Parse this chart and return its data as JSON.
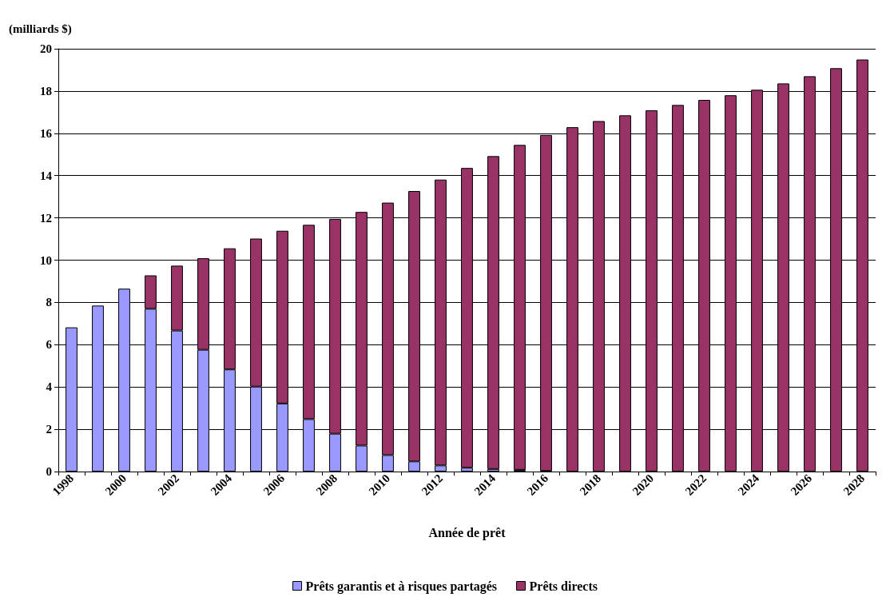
{
  "chart_data": {
    "type": "bar",
    "stacked": true,
    "ylabel": "(milliards $)",
    "xlabel": "Année de prêt",
    "categories": [
      "1998",
      null,
      "2000",
      null,
      "2002",
      null,
      "2004",
      null,
      "2006",
      null,
      "2008",
      null,
      "2010",
      null,
      "2012",
      null,
      "2014",
      null,
      "2016",
      null,
      "2018",
      null,
      "2020",
      null,
      "2022",
      null,
      "2024",
      null,
      "2026",
      null,
      "2028"
    ],
    "series": [
      {
        "name": "Prêts garantis et à risques partagés",
        "color": "#9999ff",
        "values": [
          6.82,
          7.85,
          8.65,
          7.7,
          6.67,
          5.76,
          4.83,
          4.02,
          3.22,
          2.48,
          1.79,
          1.23,
          0.78,
          0.48,
          0.29,
          0.18,
          0.12,
          0.08,
          0.03,
          null,
          null,
          null,
          null,
          null,
          null,
          null,
          null,
          null,
          null,
          null,
          null
        ]
      },
      {
        "name": "Prêts directs",
        "color": "#993366",
        "values": [
          null,
          null,
          null,
          1.58,
          3.07,
          4.33,
          5.73,
          7.0,
          8.17,
          9.19,
          10.16,
          11.05,
          11.94,
          12.79,
          13.52,
          14.18,
          14.8,
          15.37,
          15.89,
          16.29,
          16.58,
          16.85,
          17.09,
          17.34,
          17.58,
          17.8,
          18.06,
          18.36,
          18.7,
          19.08,
          19.49
        ]
      }
    ],
    "ylim": [
      0,
      20
    ],
    "yticks": [
      0,
      2,
      4,
      6,
      8,
      10,
      12,
      14,
      16,
      18,
      20
    ],
    "grid": "y",
    "legend": "bottom"
  }
}
